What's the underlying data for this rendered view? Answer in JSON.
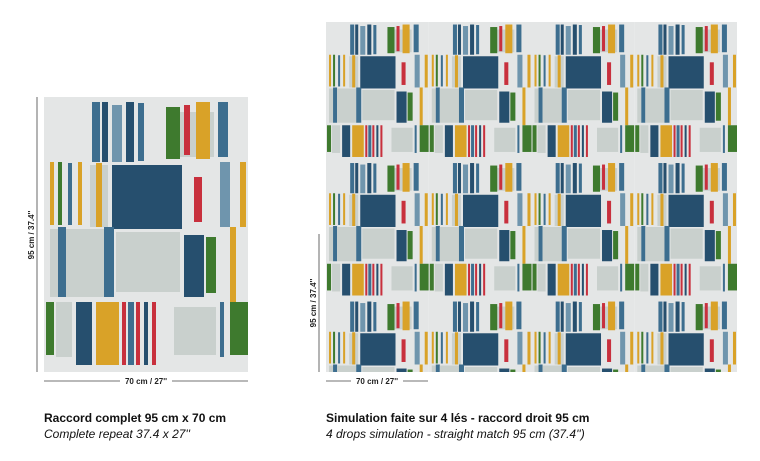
{
  "repeat_panel": {
    "height_label": "95 cm / 37.4''",
    "width_label": "70 cm / 27''",
    "caption": "Raccord complet 95 cm x 70 cm",
    "caption_en": "Complete repeat 37.4 x 27''"
  },
  "simulation_panel": {
    "height_label": "95 cm / 37.4''",
    "width_label": "70 cm / 27''",
    "caption": "Simulation faite sur 4 lés - raccord droit 95 cm",
    "caption_en": "4 drops simulation - straight match 95 cm (37.4'')"
  }
}
